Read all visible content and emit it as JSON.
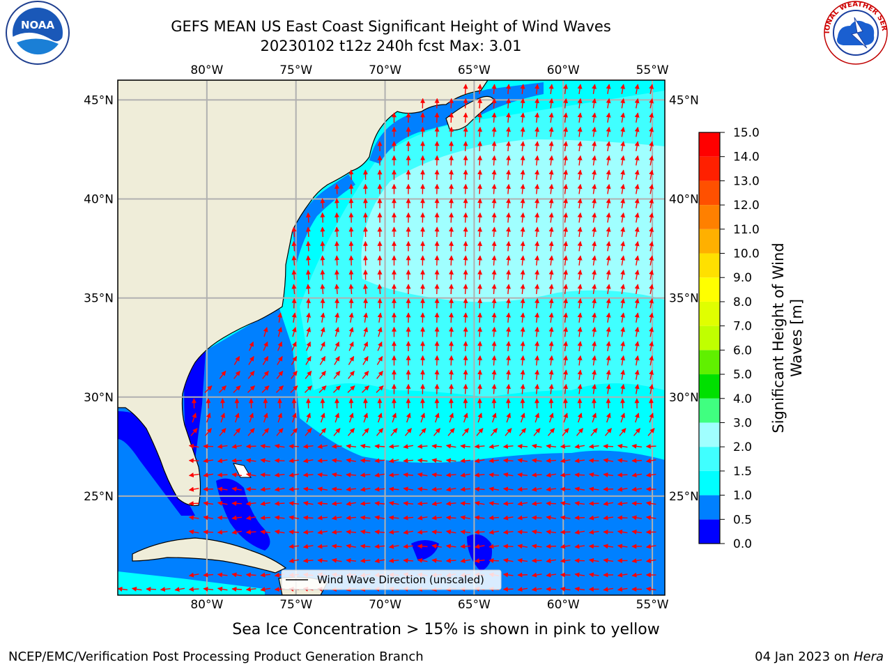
{
  "header": {
    "title_line1": "GEFS MEAN US East Coast Significant Height of Wind Waves",
    "title_line2": "20230102 t12z 240h fcst   Max: 3.01"
  },
  "logos": {
    "left": "noaa-logo",
    "left_text": "NOAA",
    "right": "national-weather-service-logo",
    "right_text": "NATIONAL WEATHER SERVICE"
  },
  "map": {
    "lon_labels": [
      "80°W",
      "75°W",
      "70°W",
      "65°W",
      "60°W",
      "55°W"
    ],
    "lat_labels": [
      "45°N",
      "40°N",
      "35°N",
      "30°N",
      "25°N"
    ],
    "lon_values": [
      -80,
      -75,
      -70,
      -65,
      -60,
      -55
    ],
    "lat_values": [
      45,
      40,
      35,
      30,
      25
    ],
    "extent": {
      "lon_min": -85,
      "lon_max": -54.3,
      "lat_min": 20,
      "lat_max": 46
    },
    "land_color": "#efedd9",
    "arrow_color": "#ff0000",
    "legend_label": "Wind Wave Direction (unscaled)"
  },
  "colorbar": {
    "label_line1": "Significant Height of Wind",
    "label_line2": "Waves [m]",
    "ticks": [
      "0.0",
      "0.5",
      "1.0",
      "1.5",
      "2.0",
      "3.0",
      "4.0",
      "5.0",
      "6.0",
      "7.0",
      "8.0",
      "9.0",
      "10.0",
      "11.0",
      "12.0",
      "13.0",
      "14.0",
      "15.0"
    ],
    "colors": [
      "#0000ff",
      "#0080ff",
      "#00ffff",
      "#40ffff",
      "#a0ffff",
      "#40ff80",
      "#00e000",
      "#60f000",
      "#c0ff00",
      "#e0ff00",
      "#ffff00",
      "#ffe000",
      "#ffb000",
      "#ff8000",
      "#ff5000",
      "#ff2000",
      "#ff0000"
    ]
  },
  "notes": {
    "ice": "Sea Ice Concentration > 15% is shown in pink to yellow"
  },
  "footer": {
    "left": "NCEP/EMC/Verification Post Processing Product Generation Branch",
    "right_date": "04 Jan 2023 on ",
    "right_host": "Hera"
  }
}
